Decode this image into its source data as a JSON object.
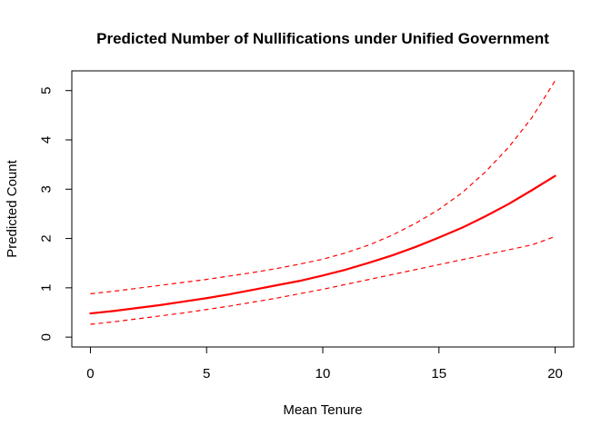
{
  "chart_data": {
    "type": "line",
    "title": "Predicted Number of Nullifications under Unified Government",
    "xlabel": "Mean Tenure",
    "ylabel": "Predicted Count",
    "xlim": [
      -0.8,
      20.8
    ],
    "ylim": [
      -0.2,
      5.4
    ],
    "xticks": [
      0,
      5,
      10,
      15,
      20
    ],
    "yticks": [
      0,
      1,
      2,
      3,
      4,
      5
    ],
    "grid": false,
    "x": [
      0,
      1,
      2,
      3,
      4,
      5,
      6,
      7,
      8,
      9,
      10,
      11,
      12,
      13,
      14,
      15,
      16,
      17,
      18,
      19,
      20
    ],
    "series": [
      {
        "name": "Predicted count",
        "style": "solid",
        "color": "#ff0000",
        "values": [
          0.48,
          0.53,
          0.59,
          0.65,
          0.72,
          0.79,
          0.87,
          0.96,
          1.05,
          1.14,
          1.25,
          1.37,
          1.51,
          1.66,
          1.83,
          2.02,
          2.22,
          2.45,
          2.7,
          2.98,
          3.27
        ]
      },
      {
        "name": "Upper confidence bound",
        "style": "dashed",
        "color": "#ff0000",
        "values": [
          0.88,
          0.93,
          0.99,
          1.05,
          1.11,
          1.17,
          1.24,
          1.31,
          1.39,
          1.48,
          1.58,
          1.71,
          1.87,
          2.07,
          2.31,
          2.59,
          2.93,
          3.35,
          3.85,
          4.45,
          5.2
        ]
      },
      {
        "name": "Lower confidence bound",
        "style": "dashed",
        "color": "#ff0000",
        "values": [
          0.26,
          0.31,
          0.37,
          0.43,
          0.49,
          0.56,
          0.63,
          0.71,
          0.79,
          0.88,
          0.97,
          1.07,
          1.17,
          1.27,
          1.37,
          1.47,
          1.57,
          1.67,
          1.77,
          1.87,
          2.04
        ]
      }
    ]
  }
}
